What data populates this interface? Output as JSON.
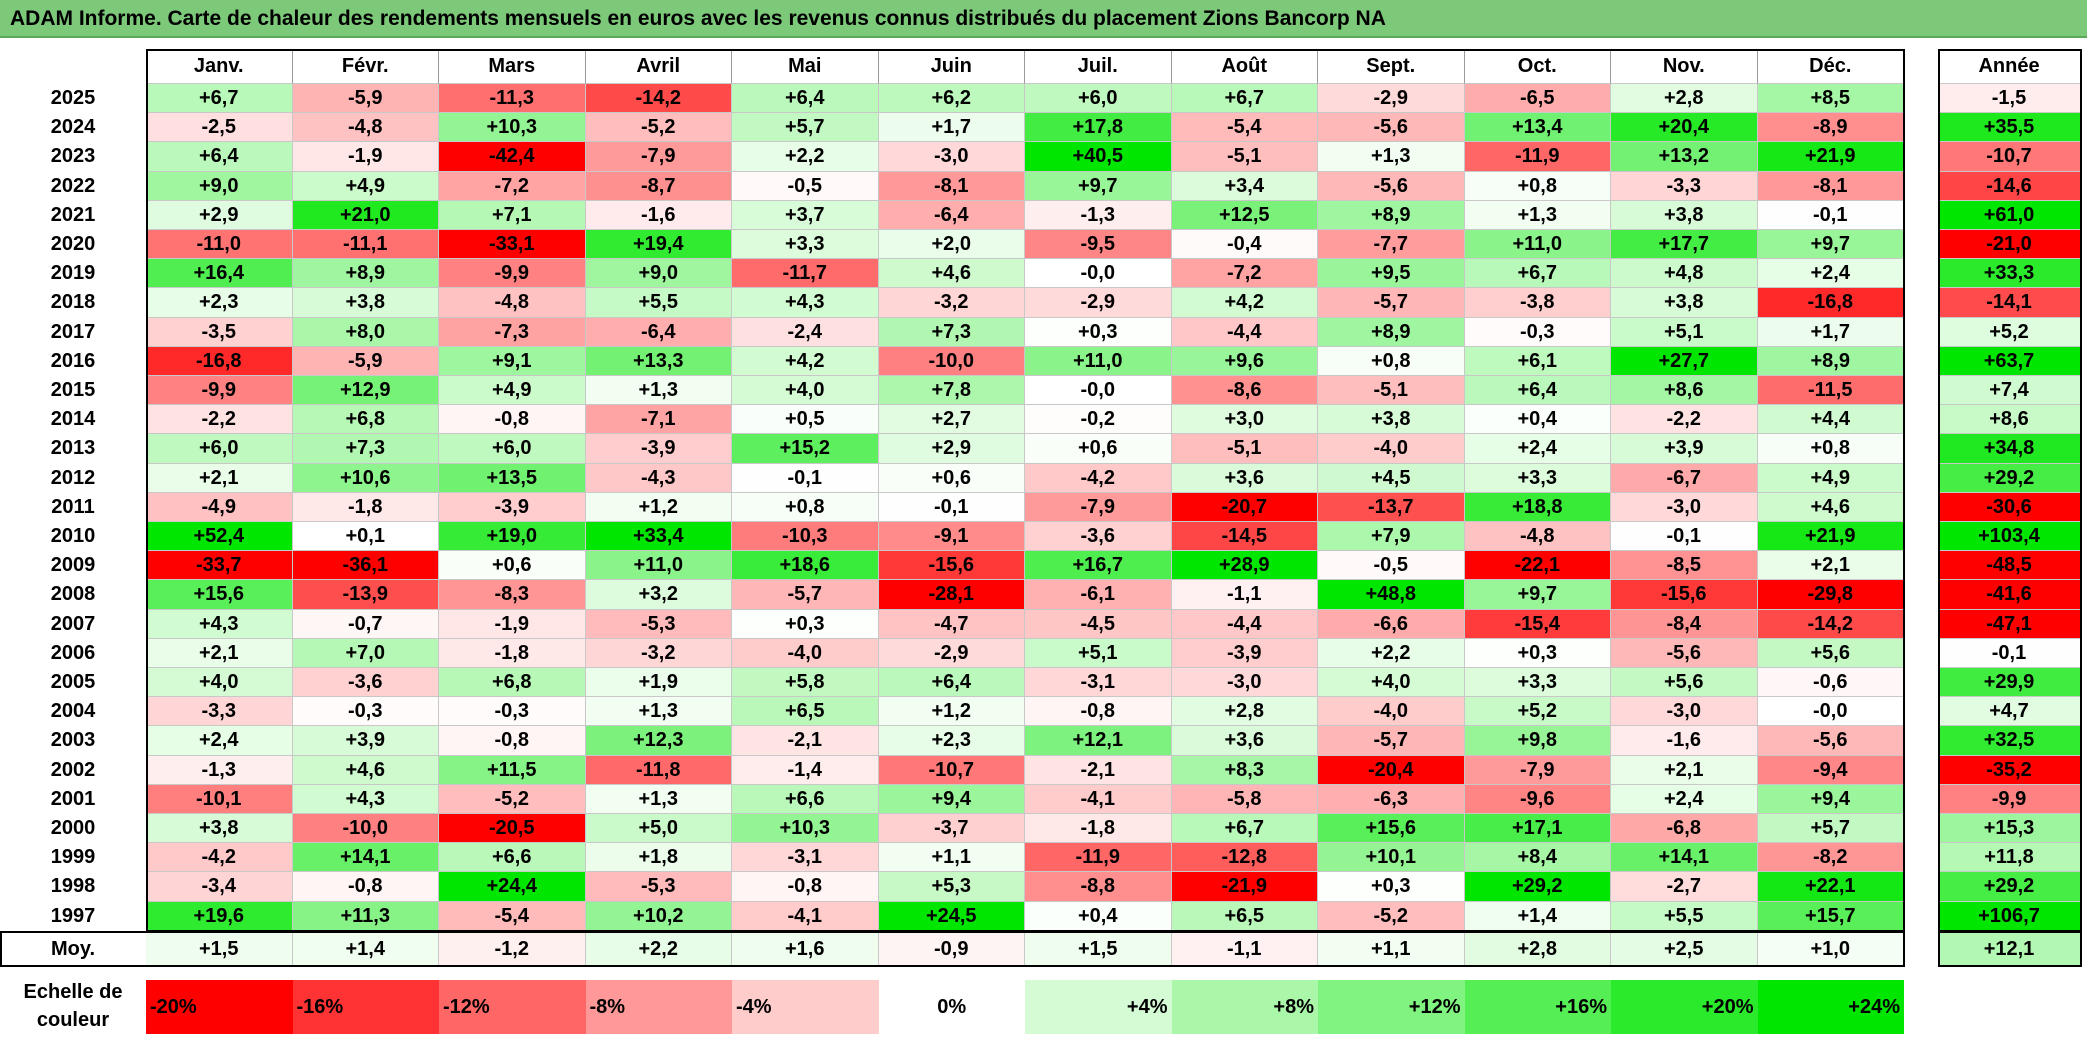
{
  "title": "ADAM Informe. Carte de chaleur des rendements mensuels en euros avec les revenus connus distribués du placement Zions Bancorp NA",
  "chart_data": {
    "type": "heatmap",
    "title": "ADAM Informe. Carte de chaleur des rendements mensuels en euros avec les revenus connus distribués du placement Zions Bancorp NA",
    "columns": [
      "Janv.",
      "Févr.",
      "Mars",
      "Avril",
      "Mai",
      "Juin",
      "Juil.",
      "Août",
      "Sept.",
      "Oct.",
      "Nov.",
      "Déc."
    ],
    "year_column_label": "Année",
    "rows": [
      {
        "year": "2025",
        "months": [
          "+6,7",
          "-5,9",
          "-11,3",
          "-14,2",
          "+6,4",
          "+6,2",
          "+6,0",
          "+6,7",
          "-2,9",
          "-6,5",
          "+2,8",
          "+8,5"
        ],
        "annual": "-1,5"
      },
      {
        "year": "2024",
        "months": [
          "-2,5",
          "-4,8",
          "+10,3",
          "-5,2",
          "+5,7",
          "+1,7",
          "+17,8",
          "-5,4",
          "-5,6",
          "+13,4",
          "+20,4",
          "-8,9"
        ],
        "annual": "+35,5"
      },
      {
        "year": "2023",
        "months": [
          "+6,4",
          "-1,9",
          "-42,4",
          "-7,9",
          "+2,2",
          "-3,0",
          "+40,5",
          "-5,1",
          "+1,3",
          "-11,9",
          "+13,2",
          "+21,9"
        ],
        "annual": "-10,7"
      },
      {
        "year": "2022",
        "months": [
          "+9,0",
          "+4,9",
          "-7,2",
          "-8,7",
          "-0,5",
          "-8,1",
          "+9,7",
          "+3,4",
          "-5,6",
          "+0,8",
          "-3,3",
          "-8,1"
        ],
        "annual": "-14,6"
      },
      {
        "year": "2021",
        "months": [
          "+2,9",
          "+21,0",
          "+7,1",
          "-1,6",
          "+3,7",
          "-6,4",
          "-1,3",
          "+12,5",
          "+8,9",
          "+1,3",
          "+3,8",
          "-0,1"
        ],
        "annual": "+61,0"
      },
      {
        "year": "2020",
        "months": [
          "-11,0",
          "-11,1",
          "-33,1",
          "+19,4",
          "+3,3",
          "+2,0",
          "-9,5",
          "-0,4",
          "-7,7",
          "+11,0",
          "+17,7",
          "+9,7"
        ],
        "annual": "-21,0"
      },
      {
        "year": "2019",
        "months": [
          "+16,4",
          "+8,9",
          "-9,9",
          "+9,0",
          "-11,7",
          "+4,6",
          "-0,0",
          "-7,2",
          "+9,5",
          "+6,7",
          "+4,8",
          "+2,4"
        ],
        "annual": "+33,3"
      },
      {
        "year": "2018",
        "months": [
          "+2,3",
          "+3,8",
          "-4,8",
          "+5,5",
          "+4,3",
          "-3,2",
          "-2,9",
          "+4,2",
          "-5,7",
          "-3,8",
          "+3,8",
          "-16,8"
        ],
        "annual": "-14,1"
      },
      {
        "year": "2017",
        "months": [
          "-3,5",
          "+8,0",
          "-7,3",
          "-6,4",
          "-2,4",
          "+7,3",
          "+0,3",
          "-4,4",
          "+8,9",
          "-0,3",
          "+5,1",
          "+1,7"
        ],
        "annual": "+5,2"
      },
      {
        "year": "2016",
        "months": [
          "-16,8",
          "-5,9",
          "+9,1",
          "+13,3",
          "+4,2",
          "-10,0",
          "+11,0",
          "+9,6",
          "+0,8",
          "+6,1",
          "+27,7",
          "+8,9"
        ],
        "annual": "+63,7"
      },
      {
        "year": "2015",
        "months": [
          "-9,9",
          "+12,9",
          "+4,9",
          "+1,3",
          "+4,0",
          "+7,8",
          "-0,0",
          "-8,6",
          "-5,1",
          "+6,4",
          "+8,6",
          "-11,5"
        ],
        "annual": "+7,4"
      },
      {
        "year": "2014",
        "months": [
          "-2,2",
          "+6,8",
          "-0,8",
          "-7,1",
          "+0,5",
          "+2,7",
          "-0,2",
          "+3,0",
          "+3,8",
          "+0,4",
          "-2,2",
          "+4,4"
        ],
        "annual": "+8,6"
      },
      {
        "year": "2013",
        "months": [
          "+6,0",
          "+7,3",
          "+6,0",
          "-3,9",
          "+15,2",
          "+2,9",
          "+0,6",
          "-5,1",
          "-4,0",
          "+2,4",
          "+3,9",
          "+0,8"
        ],
        "annual": "+34,8"
      },
      {
        "year": "2012",
        "months": [
          "+2,1",
          "+10,6",
          "+13,5",
          "-4,3",
          "-0,1",
          "+0,6",
          "-4,2",
          "+3,6",
          "+4,5",
          "+3,3",
          "-6,7",
          "+4,9"
        ],
        "annual": "+29,2"
      },
      {
        "year": "2011",
        "months": [
          "-4,9",
          "-1,8",
          "-3,9",
          "+1,2",
          "+0,8",
          "-0,1",
          "-7,9",
          "-20,7",
          "-13,7",
          "+18,8",
          "-3,0",
          "+4,6"
        ],
        "annual": "-30,6"
      },
      {
        "year": "2010",
        "months": [
          "+52,4",
          "+0,1",
          "+19,0",
          "+33,4",
          "-10,3",
          "-9,1",
          "-3,6",
          "-14,5",
          "+7,9",
          "-4,8",
          "-0,1",
          "+21,9"
        ],
        "annual": "+103,4"
      },
      {
        "year": "2009",
        "months": [
          "-33,7",
          "-36,1",
          "+0,6",
          "+11,0",
          "+18,6",
          "-15,6",
          "+16,7",
          "+28,9",
          "-0,5",
          "-22,1",
          "-8,5",
          "+2,1"
        ],
        "annual": "-48,5"
      },
      {
        "year": "2008",
        "months": [
          "+15,6",
          "-13,9",
          "-8,3",
          "+3,2",
          "-5,7",
          "-28,1",
          "-6,1",
          "-1,1",
          "+48,8",
          "+9,7",
          "-15,6",
          "-29,8"
        ],
        "annual": "-41,6"
      },
      {
        "year": "2007",
        "months": [
          "+4,3",
          "-0,7",
          "-1,9",
          "-5,3",
          "+0,3",
          "-4,7",
          "-4,5",
          "-4,4",
          "-6,6",
          "-15,4",
          "-8,4",
          "-14,2"
        ],
        "annual": "-47,1"
      },
      {
        "year": "2006",
        "months": [
          "+2,1",
          "+7,0",
          "-1,8",
          "-3,2",
          "-4,0",
          "-2,9",
          "+5,1",
          "-3,9",
          "+2,2",
          "+0,3",
          "-5,6",
          "+5,6"
        ],
        "annual": "-0,1"
      },
      {
        "year": "2005",
        "months": [
          "+4,0",
          "-3,6",
          "+6,8",
          "+1,9",
          "+5,8",
          "+6,4",
          "-3,1",
          "-3,0",
          "+4,0",
          "+3,3",
          "+5,6",
          "-0,6"
        ],
        "annual": "+29,9"
      },
      {
        "year": "2004",
        "months": [
          "-3,3",
          "-0,3",
          "-0,3",
          "+1,3",
          "+6,5",
          "+1,2",
          "-0,8",
          "+2,8",
          "-4,0",
          "+5,2",
          "-3,0",
          "-0,0"
        ],
        "annual": "+4,7"
      },
      {
        "year": "2003",
        "months": [
          "+2,4",
          "+3,9",
          "-0,8",
          "+12,3",
          "-2,1",
          "+2,3",
          "+12,1",
          "+3,6",
          "-5,7",
          "+9,8",
          "-1,6",
          "-5,6"
        ],
        "annual": "+32,5"
      },
      {
        "year": "2002",
        "months": [
          "-1,3",
          "+4,6",
          "+11,5",
          "-11,8",
          "-1,4",
          "-10,7",
          "-2,1",
          "+8,3",
          "-20,4",
          "-7,9",
          "+2,1",
          "-9,4"
        ],
        "annual": "-35,2"
      },
      {
        "year": "2001",
        "months": [
          "-10,1",
          "+4,3",
          "-5,2",
          "+1,3",
          "+6,6",
          "+9,4",
          "-4,1",
          "-5,8",
          "-6,3",
          "-9,6",
          "+2,4",
          "+9,4"
        ],
        "annual": "-9,9"
      },
      {
        "year": "2000",
        "months": [
          "+3,8",
          "-10,0",
          "-20,5",
          "+5,0",
          "+10,3",
          "-3,7",
          "-1,8",
          "+6,7",
          "+15,6",
          "+17,1",
          "-6,8",
          "+5,7"
        ],
        "annual": "+15,3"
      },
      {
        "year": "1999",
        "months": [
          "-4,2",
          "+14,1",
          "+6,6",
          "+1,8",
          "-3,1",
          "+1,1",
          "-11,9",
          "-12,8",
          "+10,1",
          "+8,4",
          "+14,1",
          "-8,2"
        ],
        "annual": "+11,8"
      },
      {
        "year": "1998",
        "months": [
          "-3,4",
          "-0,8",
          "+24,4",
          "-5,3",
          "-0,8",
          "+5,3",
          "-8,8",
          "-21,9",
          "+0,3",
          "+29,2",
          "-2,7",
          "+22,1"
        ],
        "annual": "+29,2"
      },
      {
        "year": "1997",
        "months": [
          "+19,6",
          "+11,3",
          "-5,4",
          "+10,2",
          "-4,1",
          "+24,5",
          "+0,4",
          "+6,5",
          "-5,2",
          "+1,4",
          "+5,5",
          "+15,7"
        ],
        "annual": "+106,7"
      }
    ],
    "average": {
      "label": "Moy.",
      "months": [
        "+1,5",
        "+1,4",
        "-1,2",
        "+2,2",
        "+1,6",
        "-0,9",
        "+1,5",
        "-1,1",
        "+1,1",
        "+2,8",
        "+2,5",
        "+1,0"
      ],
      "annual": "+12,1"
    },
    "color_scale": {
      "label": "Echelle de couleur",
      "steps": [
        {
          "label": "-20%",
          "value": -20
        },
        {
          "label": "-16%",
          "value": -16
        },
        {
          "label": "-12%",
          "value": -12
        },
        {
          "label": "-8%",
          "value": -8
        },
        {
          "label": "-4%",
          "value": -4
        },
        {
          "label": "0%",
          "value": 0
        },
        {
          "label": "+4%",
          "value": 4
        },
        {
          "label": "+8%",
          "value": 8
        },
        {
          "label": "+12%",
          "value": 12
        },
        {
          "label": "+16%",
          "value": 16
        },
        {
          "label": "+20%",
          "value": 20
        },
        {
          "label": "+24%",
          "value": 24
        }
      ],
      "monthly_range": [
        -20,
        24
      ],
      "annual_range": [
        -20,
        40
      ],
      "negative_color": "#ff0000",
      "neutral_color": "#ffffff",
      "positive_color": "#00e600"
    }
  }
}
